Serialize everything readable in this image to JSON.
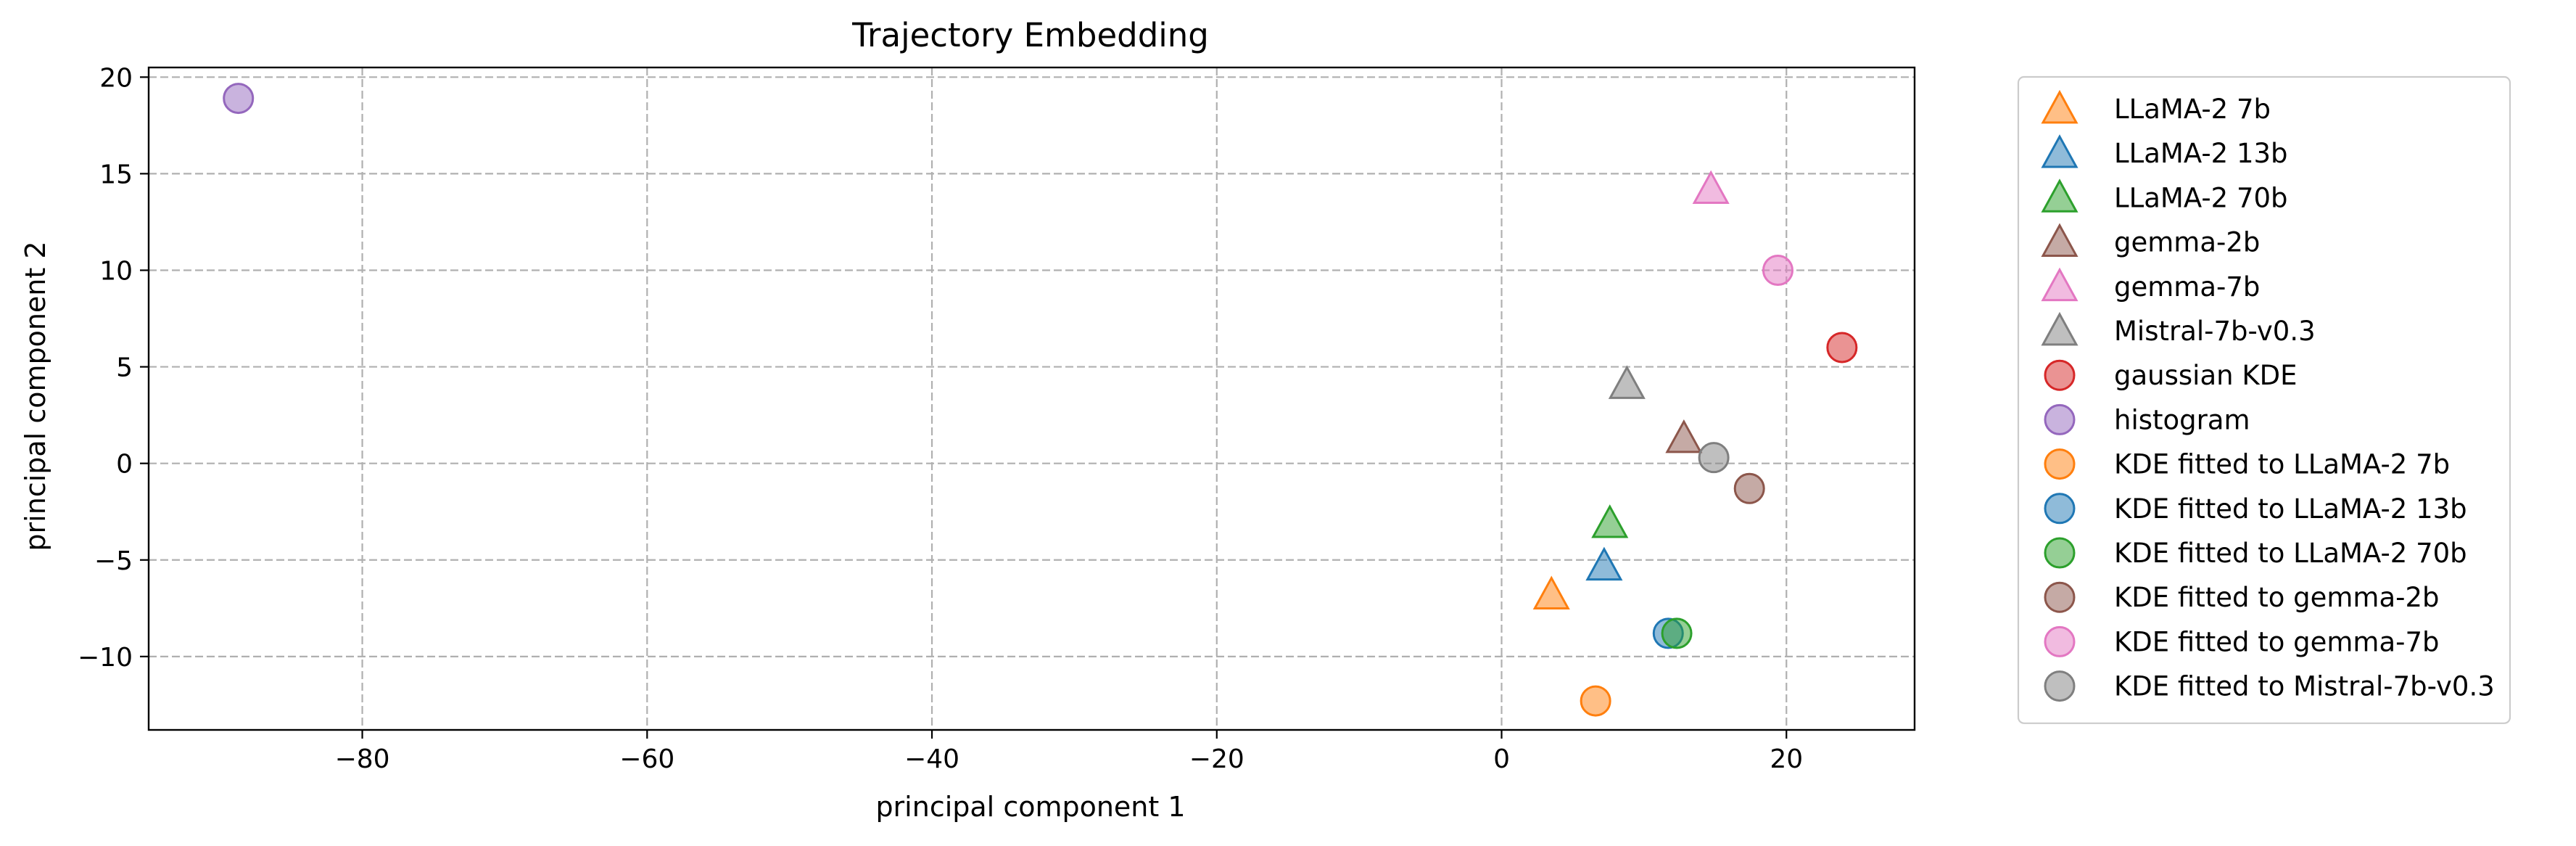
{
  "chart_data": {
    "type": "scatter",
    "title": "Trajectory Embedding",
    "xlabel": "principal component 1",
    "ylabel": "principal component 2",
    "xlim": [
      -95,
      29
    ],
    "ylim": [
      -13.8,
      20.5
    ],
    "xticks": [
      -80,
      -60,
      -40,
      -20,
      0,
      20
    ],
    "yticks": [
      -10,
      -5,
      0,
      5,
      10,
      15,
      20
    ],
    "grid": true,
    "legend_position": "outside-right",
    "point_alpha": 0.5,
    "series": [
      {
        "name": "LLaMA-2 7b",
        "marker": "triangle",
        "color": "#ff7f0e",
        "points": [
          [
            3.5,
            -6.8
          ]
        ]
      },
      {
        "name": "LLaMA-2 13b",
        "marker": "triangle",
        "color": "#1f77b4",
        "points": [
          [
            7.2,
            -5.3
          ]
        ]
      },
      {
        "name": "LLaMA-2 70b",
        "marker": "triangle",
        "color": "#2ca02c",
        "points": [
          [
            7.6,
            -3.1
          ]
        ]
      },
      {
        "name": "gemma-2b",
        "marker": "triangle",
        "color": "#8c564b",
        "points": [
          [
            12.8,
            1.3
          ]
        ]
      },
      {
        "name": "gemma-7b",
        "marker": "triangle",
        "color": "#e377c2",
        "points": [
          [
            14.7,
            14.2
          ]
        ]
      },
      {
        "name": "Mistral-7b-v0.3",
        "marker": "triangle",
        "color": "#7f7f7f",
        "points": [
          [
            8.8,
            4.1
          ]
        ]
      },
      {
        "name": "gaussian KDE",
        "marker": "circle",
        "color": "#d62728",
        "points": [
          [
            23.9,
            6.0
          ]
        ]
      },
      {
        "name": "histogram",
        "marker": "circle",
        "color": "#9467bd",
        "points": [
          [
            -88.7,
            18.9
          ]
        ]
      },
      {
        "name": "KDE fitted to LLaMA-2 7b",
        "marker": "circle",
        "color": "#ff7f0e",
        "points": [
          [
            6.6,
            -12.3
          ]
        ]
      },
      {
        "name": "KDE fitted to LLaMA-2 13b",
        "marker": "circle",
        "color": "#1f77b4",
        "points": [
          [
            11.7,
            -8.8
          ]
        ]
      },
      {
        "name": "KDE fitted to LLaMA-2 70b",
        "marker": "circle",
        "color": "#2ca02c",
        "points": [
          [
            12.3,
            -8.8
          ]
        ]
      },
      {
        "name": "KDE fitted to gemma-2b",
        "marker": "circle",
        "color": "#8c564b",
        "points": [
          [
            17.4,
            -1.3
          ]
        ]
      },
      {
        "name": "KDE fitted to gemma-7b",
        "marker": "circle",
        "color": "#e377c2",
        "points": [
          [
            19.4,
            10.0
          ]
        ]
      },
      {
        "name": "KDE fitted to Mistral-7b-v0.3",
        "marker": "circle",
        "color": "#7f7f7f",
        "points": [
          [
            14.9,
            0.3
          ]
        ]
      }
    ]
  }
}
